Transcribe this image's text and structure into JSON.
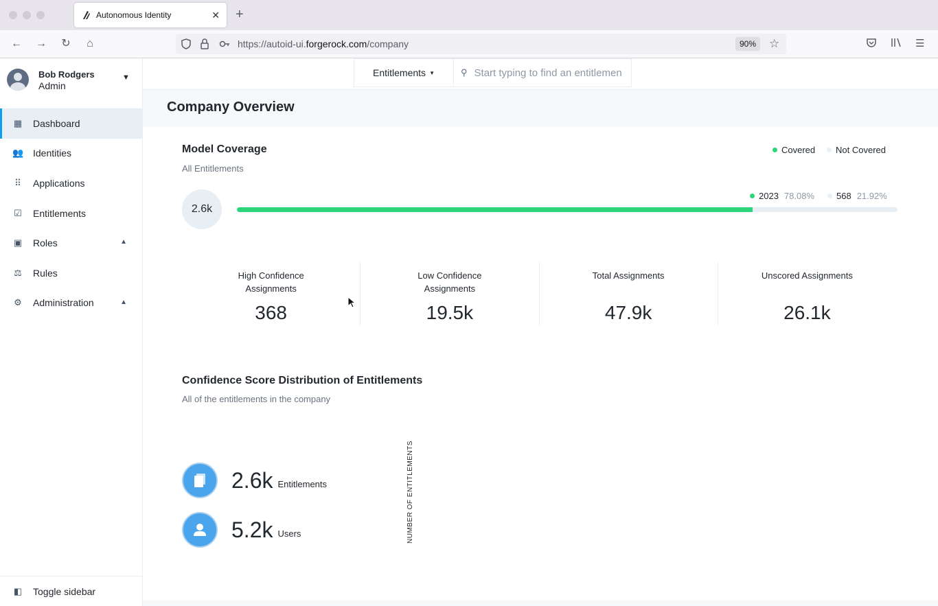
{
  "browser": {
    "tab_title": "Autonomous Identity",
    "url_host": "https://autoid-ui.",
    "url_domain": "forgerock.com",
    "url_path": "/company",
    "zoom": "90%"
  },
  "sidebar": {
    "user": {
      "name": "Bob Rodgers",
      "role": "Admin"
    },
    "items": [
      {
        "label": "Dashboard",
        "active": true
      },
      {
        "label": "Identities"
      },
      {
        "label": "Applications"
      },
      {
        "label": "Entitlements"
      },
      {
        "label": "Roles"
      },
      {
        "label": "Rules"
      },
      {
        "label": "Administration"
      }
    ],
    "toggle_label": "Toggle sidebar"
  },
  "topbar": {
    "type_select": "Entitlements",
    "search_placeholder": "Start typing to find an entitlement"
  },
  "page": {
    "title": "Company Overview"
  },
  "model_coverage": {
    "title": "Model Coverage",
    "subtitle": "All Entitlements",
    "legend": {
      "covered": "Covered",
      "not_covered": "Not Covered"
    },
    "total": "2.6k",
    "covered_count": "2023",
    "covered_pct": "78.08%",
    "not_covered_count": "568",
    "not_covered_pct": "21.92%",
    "covered_fraction": 0.7808,
    "colors": {
      "covered": "#2ed47a",
      "not_covered": "#e7eef4"
    }
  },
  "stats": [
    {
      "label": "High Confidence Assignments",
      "value": "368"
    },
    {
      "label": "Low Confidence Assignments",
      "value": "19.5k"
    },
    {
      "label": "Total Assignments",
      "value": "47.9k"
    },
    {
      "label": "Unscored Assignments",
      "value": "26.1k"
    }
  ],
  "distribution": {
    "title": "Confidence Score Distribution of Entitlements",
    "subtitle": "All of the entitlements in the company",
    "entitlements_value": "2.6k",
    "entitlements_unit": "Entitlements",
    "users_value": "5.2k",
    "users_unit": "Users",
    "y_axis_label": "NUMBER OF ENTITLEMENTS"
  }
}
